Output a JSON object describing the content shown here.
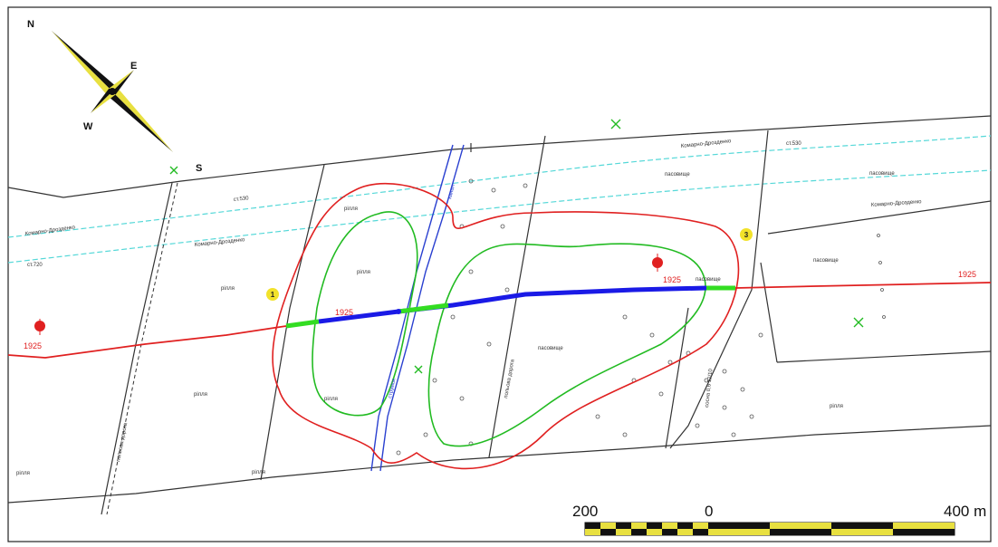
{
  "compass": {
    "n": "N",
    "e": "E",
    "s": "S",
    "w": "W"
  },
  "scale": {
    "left": "200",
    "zero": "0",
    "right": "400 m"
  },
  "pipeline": {
    "label_left": "1925",
    "label_center": "1925",
    "label_right": "1925",
    "label_mid": "1925"
  },
  "points": {
    "p1": "1",
    "p2": "2",
    "p3": "3"
  },
  "field_labels": {
    "road_a": "Комарно-Дрозденко",
    "road_b": "Комарно-Дрозденко",
    "road_c": "Комарно-Дрозденко",
    "road_d": "Комарно-Дрозденко",
    "parcel_1": "рілля",
    "parcel_2": "рілля",
    "parcel_3": "рілля",
    "parcel_4": "рілля",
    "parcel_5": "рілля",
    "parcel_6": "рілля",
    "parcel_7": "пасовище",
    "parcel_8": "пасовище",
    "parcel_9": "пасовище",
    "parcel_10": "пасовище",
    "parcel_11": "пасовище",
    "parcel_12": "рілля",
    "parcel_13": "рілля",
    "ct720": "ст.720",
    "ct530a": "ст.530",
    "ct530b": "ст.530",
    "forest": "сосна 0,6 12/10",
    "stream": "струмок",
    "canal": "канал",
    "road_v1": "польова дорога",
    "road_v2": "польова дорога"
  },
  "colors": {
    "pipeline": "#e02020",
    "zone_outer": "#e02020",
    "zone_inner": "#22bb22",
    "crossing": "#1a1ae6",
    "crossing_end": "#33dd22",
    "water": "#2a40d0",
    "contour": "#55d8d8"
  }
}
